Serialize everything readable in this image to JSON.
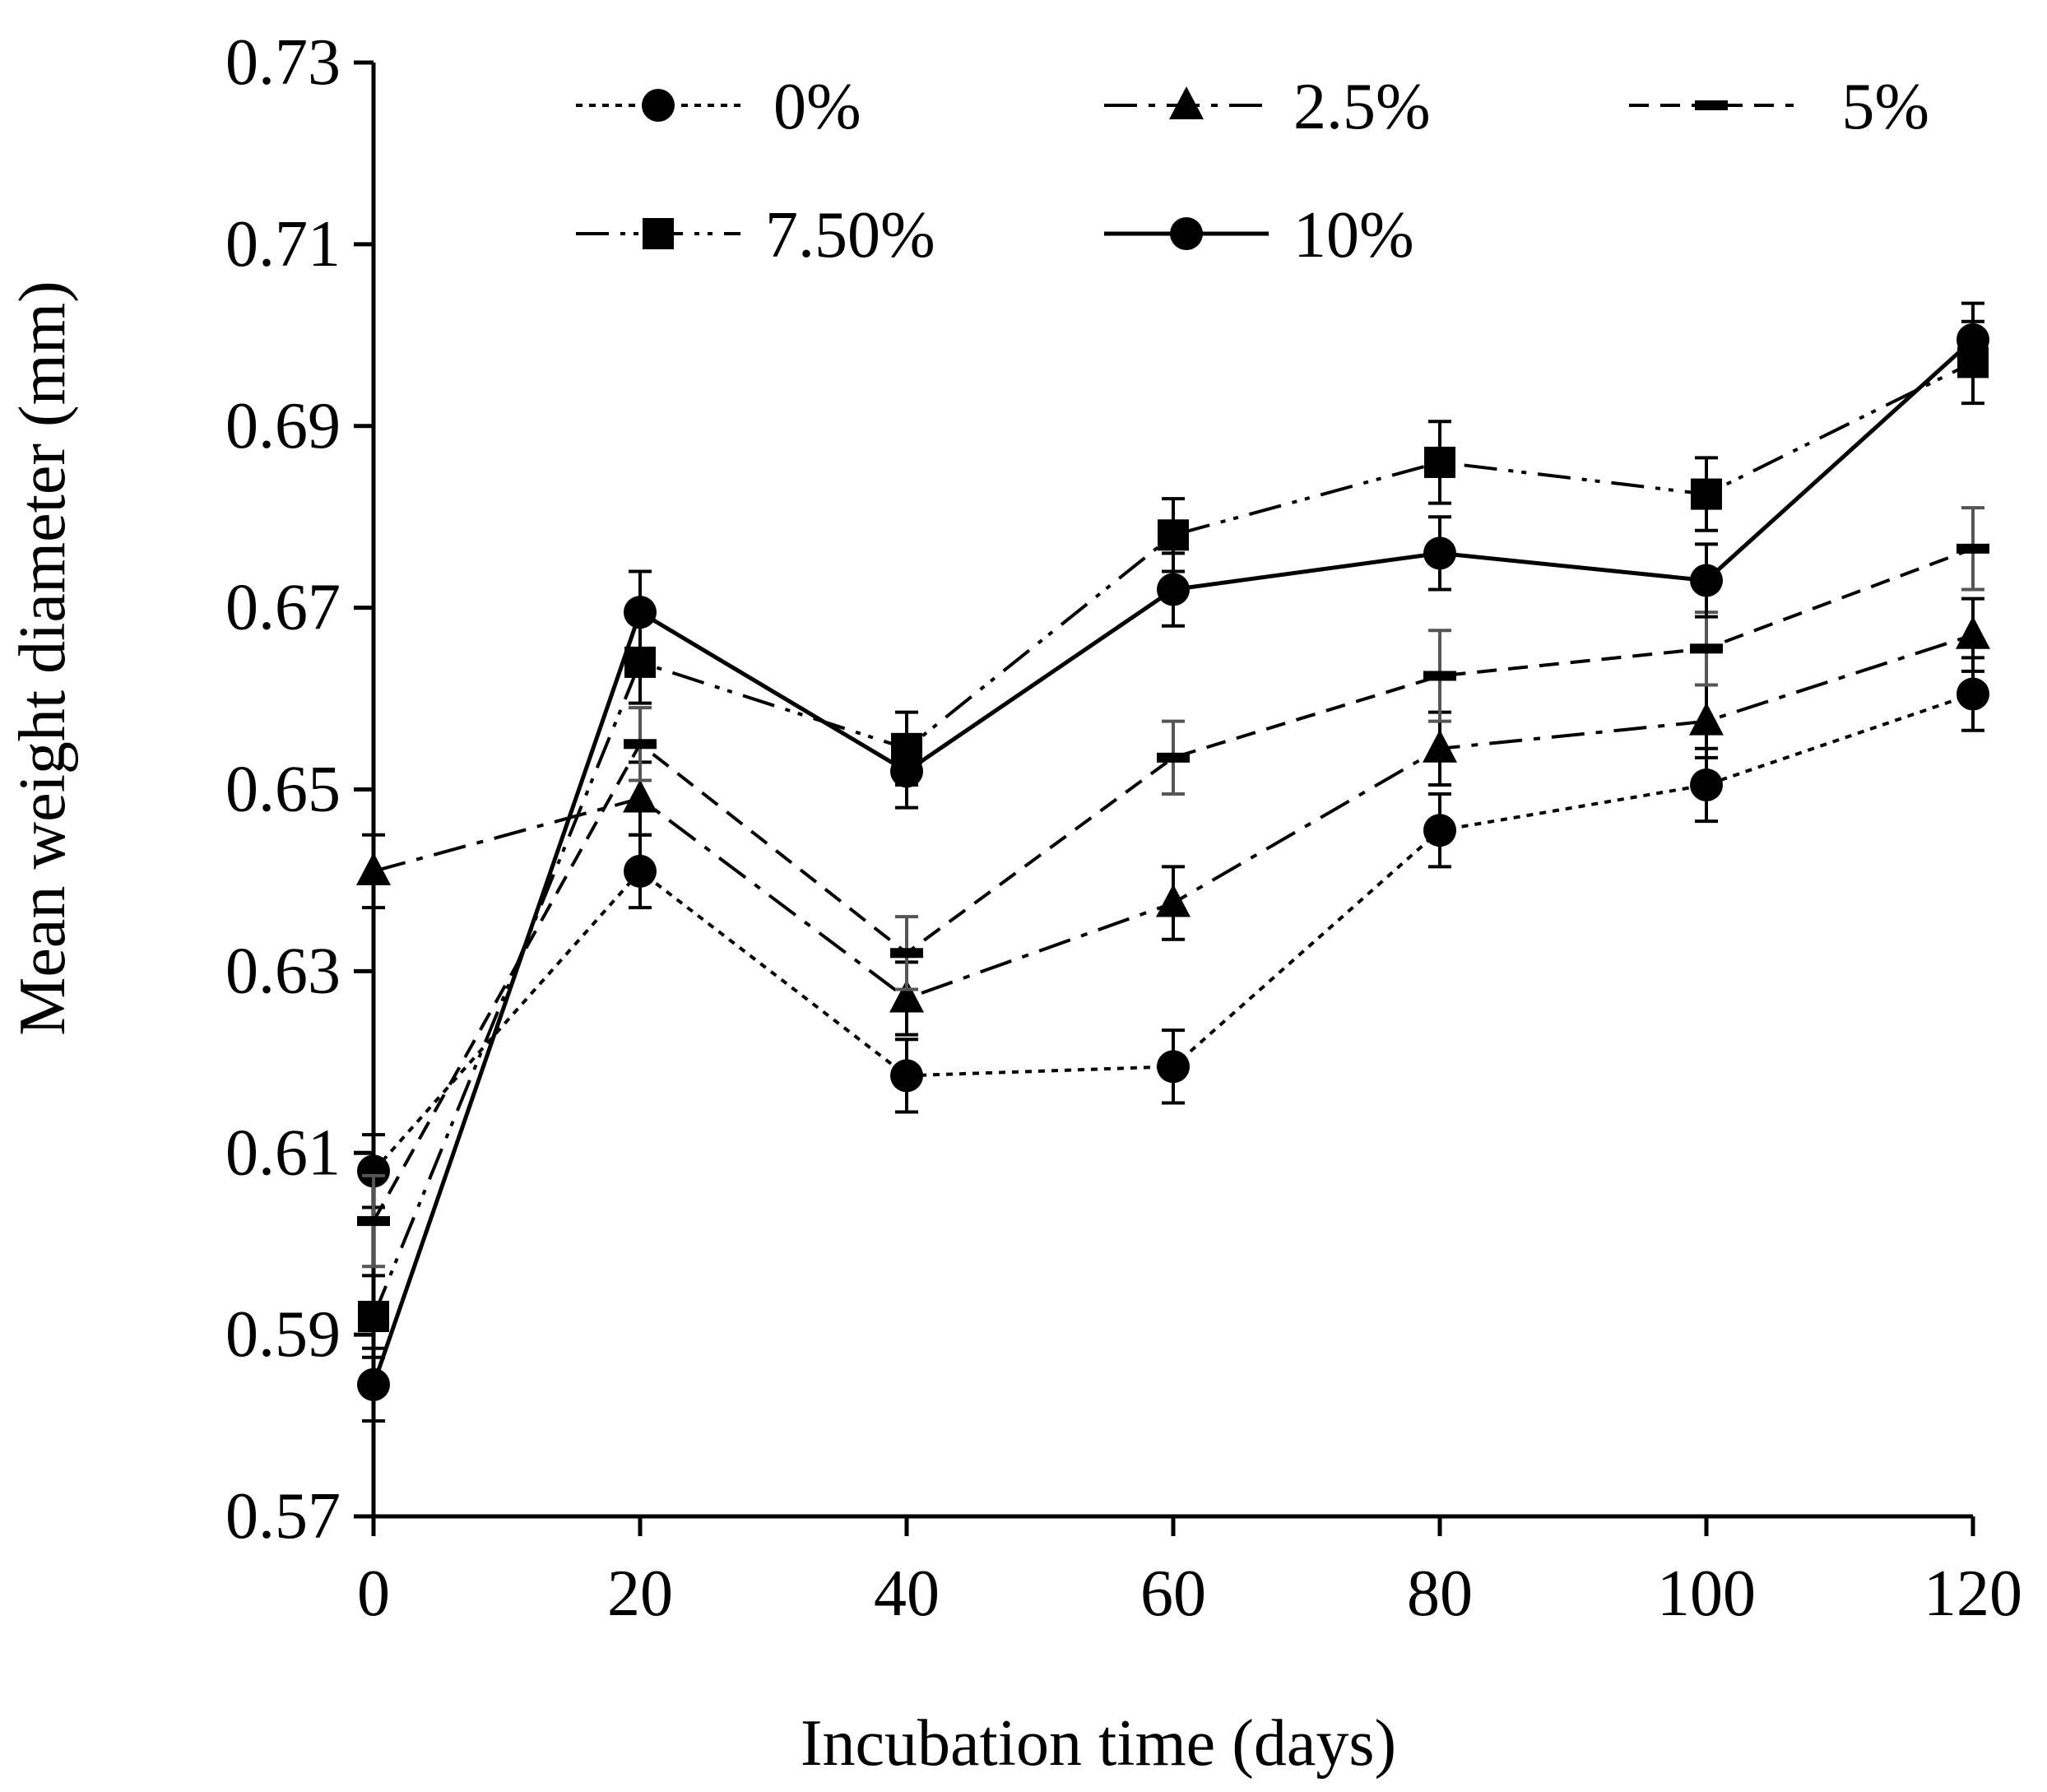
{
  "chart_data": {
    "type": "line",
    "title": "",
    "xlabel": "Incubation time (days)",
    "ylabel": "Mean weight diameter (mm)",
    "x": [
      0,
      20,
      40,
      60,
      80,
      100,
      120
    ],
    "x_ticks": [
      "0",
      "20",
      "40",
      "60",
      "80",
      "100",
      "120"
    ],
    "y_ticks": [
      "0.57",
      "0.59",
      "0.61",
      "0.63",
      "0.65",
      "0.67",
      "0.69",
      "0.71",
      "0.73"
    ],
    "xlim": [
      0,
      120
    ],
    "ylim": [
      0.57,
      0.73
    ],
    "grid": false,
    "legend_position": "top",
    "series": [
      {
        "name": "0%",
        "marker": "circle",
        "dash": "dotted",
        "values": [
          0.608,
          0.641,
          0.6185,
          0.6195,
          0.6455,
          0.6505,
          0.6605
        ],
        "errors": [
          0.004,
          0.004,
          0.004,
          0.004,
          0.004,
          0.004,
          0.004
        ]
      },
      {
        "name": "2.5%",
        "marker": "triangle",
        "dash": "dash-dot",
        "values": [
          0.641,
          0.649,
          0.627,
          0.6375,
          0.6545,
          0.6575,
          0.667
        ],
        "errors": [
          0.004,
          0.004,
          0.004,
          0.004,
          0.004,
          0.004,
          0.004
        ]
      },
      {
        "name": "5%",
        "marker": "dash",
        "dash": "dashed",
        "values": [
          0.6025,
          0.655,
          0.632,
          0.6535,
          0.6625,
          0.6655,
          0.6765
        ],
        "errors": [
          0.005,
          0.004,
          0.004,
          0.004,
          0.005,
          0.004,
          0.0045
        ]
      },
      {
        "name": "7.50%",
        "marker": "square",
        "dash": "dash-dot-dot",
        "values": [
          0.592,
          0.664,
          0.6545,
          0.678,
          0.686,
          0.6825,
          0.697
        ],
        "errors": [
          0.0045,
          0.0045,
          0.004,
          0.004,
          0.0045,
          0.004,
          0.0045
        ]
      },
      {
        "name": "10%",
        "marker": "circle",
        "dash": "solid",
        "values": [
          0.5845,
          0.6695,
          0.652,
          0.672,
          0.676,
          0.673,
          0.6995
        ],
        "errors": [
          0.004,
          0.0045,
          0.004,
          0.004,
          0.004,
          0.004,
          0.004
        ]
      }
    ]
  }
}
